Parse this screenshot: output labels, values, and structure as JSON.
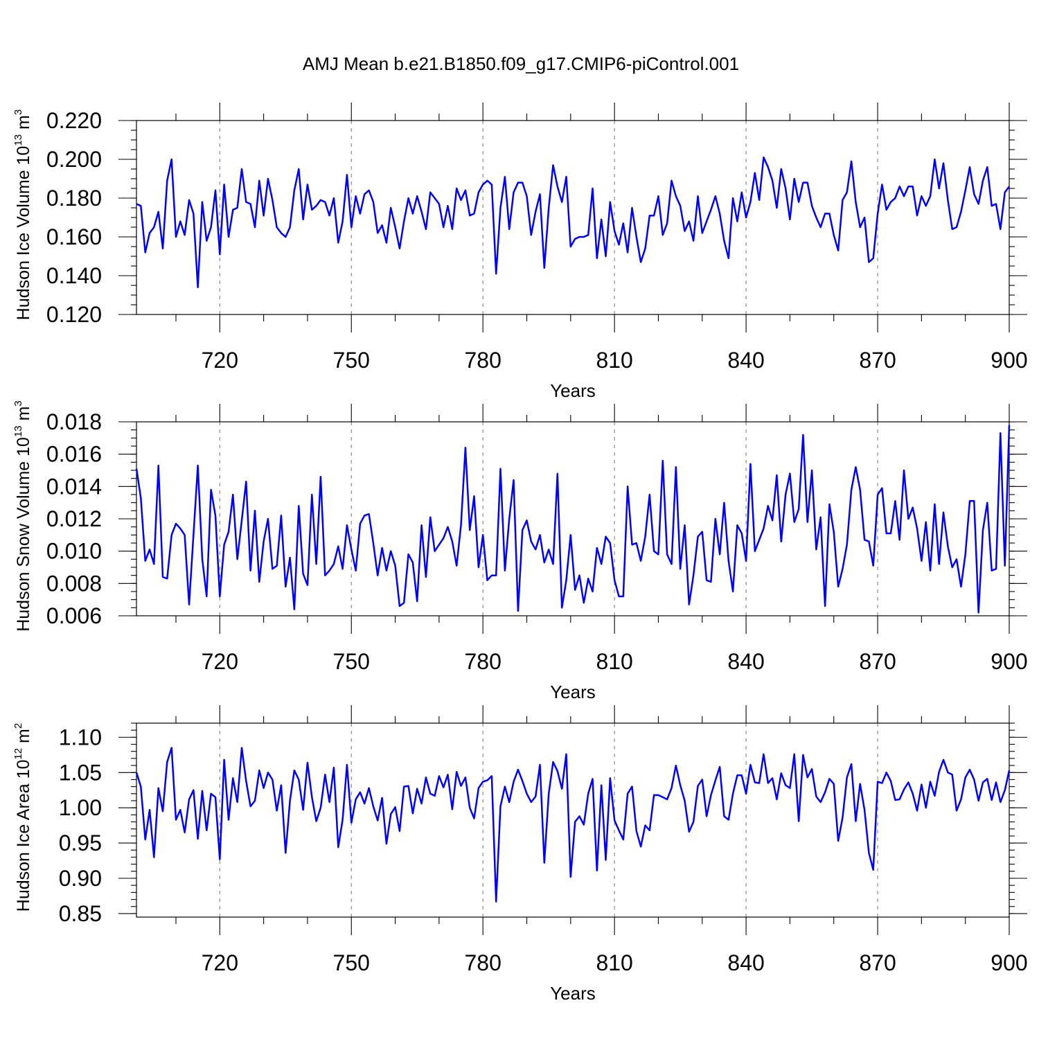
{
  "title": "AMJ Mean b.e21.B1850.f09_g17.CMIP6-piControl.001",
  "line_color": "#0000ff",
  "chart_data": [
    {
      "type": "line",
      "ylabel_main": "Hudson Ice Volume 10",
      "ylabel_exp": "13",
      "ylabel_unit": " m",
      "ylabel_unit_exp": "3",
      "xlabel": "Years",
      "xlim": [
        701,
        900
      ],
      "ylim": [
        0.12,
        0.22
      ],
      "x_start": 701,
      "x_major_ticks": [
        "720",
        "750",
        "780",
        "810",
        "840",
        "870",
        "900"
      ],
      "y_major_ticks": [
        "0.120",
        "0.140",
        "0.160",
        "0.180",
        "0.200",
        "0.220"
      ],
      "y_major_values": [
        0.12,
        0.14,
        0.16,
        0.18,
        0.2,
        0.22
      ],
      "y_minor_step": 0.005,
      "grid": "vertical dashed at major x ticks",
      "values": [
        0.177,
        0.176,
        0.152,
        0.162,
        0.165,
        0.173,
        0.154,
        0.189,
        0.2,
        0.16,
        0.168,
        0.161,
        0.179,
        0.172,
        0.134,
        0.178,
        0.158,
        0.165,
        0.184,
        0.151,
        0.187,
        0.16,
        0.174,
        0.175,
        0.195,
        0.178,
        0.177,
        0.165,
        0.189,
        0.171,
        0.19,
        0.179,
        0.165,
        0.162,
        0.16,
        0.165,
        0.184,
        0.195,
        0.169,
        0.187,
        0.174,
        0.176,
        0.179,
        0.178,
        0.171,
        0.18,
        0.157,
        0.168,
        0.192,
        0.165,
        0.181,
        0.172,
        0.182,
        0.184,
        0.178,
        0.162,
        0.166,
        0.157,
        0.175,
        0.165,
        0.154,
        0.168,
        0.18,
        0.172,
        0.181,
        0.173,
        0.164,
        0.183,
        0.18,
        0.177,
        0.165,
        0.176,
        0.164,
        0.185,
        0.179,
        0.184,
        0.171,
        0.172,
        0.183,
        0.187,
        0.189,
        0.187,
        0.141,
        0.175,
        0.191,
        0.164,
        0.183,
        0.188,
        0.188,
        0.181,
        0.161,
        0.173,
        0.182,
        0.144,
        0.175,
        0.197,
        0.186,
        0.178,
        0.191,
        0.155,
        0.159,
        0.16,
        0.16,
        0.161,
        0.185,
        0.149,
        0.169,
        0.15,
        0.178,
        0.163,
        0.156,
        0.167,
        0.152,
        0.175,
        0.16,
        0.147,
        0.154,
        0.171,
        0.171,
        0.181,
        0.161,
        0.167,
        0.189,
        0.181,
        0.176,
        0.163,
        0.168,
        0.158,
        0.181,
        0.162,
        0.168,
        0.174,
        0.181,
        0.172,
        0.158,
        0.149,
        0.18,
        0.168,
        0.183,
        0.17,
        0.178,
        0.193,
        0.179,
        0.201,
        0.196,
        0.189,
        0.175,
        0.195,
        0.185,
        0.169,
        0.19,
        0.178,
        0.188,
        0.188,
        0.176,
        0.17,
        0.165,
        0.172,
        0.172,
        0.161,
        0.153,
        0.179,
        0.183,
        0.199,
        0.178,
        0.165,
        0.17,
        0.147,
        0.149,
        0.172,
        0.187,
        0.174,
        0.178,
        0.18,
        0.186,
        0.181,
        0.186,
        0.186,
        0.171,
        0.181,
        0.176,
        0.181,
        0.2,
        0.185,
        0.198,
        0.179,
        0.164,
        0.165,
        0.173,
        0.184,
        0.196,
        0.182,
        0.177,
        0.189,
        0.196,
        0.176,
        0.177,
        0.164,
        0.183,
        0.186
      ]
    },
    {
      "type": "line",
      "ylabel_main": "Hudson Snow Volume 10",
      "ylabel_exp": "13",
      "ylabel_unit": " m",
      "ylabel_unit_exp": "3",
      "xlabel": "Years",
      "xlim": [
        701,
        900
      ],
      "ylim": [
        0.006,
        0.018
      ],
      "x_start": 701,
      "x_major_ticks": [
        "720",
        "750",
        "780",
        "810",
        "840",
        "870",
        "900"
      ],
      "y_major_ticks": [
        "0.006",
        "0.008",
        "0.010",
        "0.012",
        "0.014",
        "0.016",
        "0.018"
      ],
      "y_major_values": [
        0.006,
        0.008,
        0.01,
        0.012,
        0.014,
        0.016,
        0.018
      ],
      "y_minor_step": 0.0005,
      "grid": "vertical dashed at major x ticks",
      "values": [
        0.0151,
        0.0133,
        0.0094,
        0.0101,
        0.0092,
        0.0153,
        0.0084,
        0.0083,
        0.011,
        0.0117,
        0.0114,
        0.011,
        0.0067,
        0.011,
        0.0153,
        0.0095,
        0.0072,
        0.0138,
        0.0122,
        0.0072,
        0.0104,
        0.0112,
        0.0135,
        0.0095,
        0.0119,
        0.0143,
        0.0088,
        0.0125,
        0.0081,
        0.0106,
        0.012,
        0.0089,
        0.0091,
        0.0122,
        0.0078,
        0.0096,
        0.0064,
        0.0128,
        0.0086,
        0.0079,
        0.0135,
        0.0092,
        0.0146,
        0.0085,
        0.0088,
        0.0092,
        0.0103,
        0.0089,
        0.0116,
        0.0101,
        0.0088,
        0.0117,
        0.0122,
        0.0123,
        0.0105,
        0.0085,
        0.0102,
        0.0088,
        0.01,
        0.0091,
        0.0066,
        0.0068,
        0.0098,
        0.0093,
        0.0069,
        0.0116,
        0.0084,
        0.0121,
        0.01,
        0.0104,
        0.0108,
        0.0115,
        0.0106,
        0.0091,
        0.0116,
        0.0164,
        0.0113,
        0.0134,
        0.009,
        0.011,
        0.0082,
        0.0085,
        0.0085,
        0.0151,
        0.0088,
        0.012,
        0.0144,
        0.0063,
        0.0113,
        0.0119,
        0.0106,
        0.0101,
        0.011,
        0.0093,
        0.0101,
        0.0092,
        0.0148,
        0.0065,
        0.0082,
        0.011,
        0.0076,
        0.0085,
        0.0068,
        0.0083,
        0.0075,
        0.0102,
        0.0092,
        0.0109,
        0.0105,
        0.0082,
        0.0072,
        0.0072,
        0.014,
        0.0104,
        0.0105,
        0.0094,
        0.0109,
        0.0135,
        0.01,
        0.0098,
        0.0156,
        0.0098,
        0.0092,
        0.0152,
        0.0089,
        0.0116,
        0.0067,
        0.0085,
        0.0109,
        0.0112,
        0.0082,
        0.0081,
        0.012,
        0.0098,
        0.013,
        0.0094,
        0.0075,
        0.0116,
        0.0111,
        0.0094,
        0.0154,
        0.01,
        0.0107,
        0.0114,
        0.0128,
        0.0119,
        0.0147,
        0.0106,
        0.0135,
        0.0148,
        0.0118,
        0.0126,
        0.0172,
        0.0118,
        0.015,
        0.0101,
        0.0121,
        0.0066,
        0.0129,
        0.0112,
        0.0078,
        0.0089,
        0.0104,
        0.0138,
        0.0152,
        0.0138,
        0.0107,
        0.0106,
        0.0091,
        0.0135,
        0.0139,
        0.0111,
        0.0111,
        0.0131,
        0.0107,
        0.015,
        0.012,
        0.0127,
        0.0114,
        0.0094,
        0.0118,
        0.0088,
        0.0129,
        0.0092,
        0.0124,
        0.0103,
        0.009,
        0.0095,
        0.0078,
        0.0098,
        0.0131,
        0.0131,
        0.0062,
        0.0113,
        0.013,
        0.0088,
        0.0089,
        0.0173,
        0.0091,
        0.0178
      ]
    },
    {
      "type": "line",
      "ylabel_main": "Hudson Ice Area 10",
      "ylabel_exp": "12",
      "ylabel_unit": " m",
      "ylabel_unit_exp": "2",
      "xlabel": "Years",
      "xlim": [
        701,
        900
      ],
      "ylim": [
        0.845,
        1.12
      ],
      "x_start": 701,
      "x_major_ticks": [
        "720",
        "750",
        "780",
        "810",
        "840",
        "870",
        "900"
      ],
      "y_major_ticks": [
        "0.85",
        "0.90",
        "0.95",
        "1.00",
        "1.05",
        "1.10"
      ],
      "y_major_values": [
        0.85,
        0.9,
        0.95,
        1.0,
        1.05,
        1.1
      ],
      "y_minor_step": 0.01,
      "grid": "vertical dashed at major x ticks",
      "values": [
        1.05,
        1.03,
        0.955,
        0.997,
        0.93,
        1.028,
        0.995,
        1.065,
        1.085,
        0.983,
        0.997,
        0.965,
        1.012,
        1.025,
        0.956,
        1.024,
        0.968,
        1.02,
        1.015,
        0.927,
        1.068,
        0.983,
        1.042,
        1.008,
        1.085,
        1.038,
        1.002,
        1.01,
        1.053,
        1.028,
        1.05,
        1.04,
        0.996,
        1.032,
        0.936,
        1.01,
        1.053,
        1.04,
        0.997,
        1.064,
        1.015,
        0.981,
        1.0,
        1.047,
        1.008,
        1.057,
        0.944,
        0.983,
        1.061,
        0.979,
        1.012,
        1.022,
        1.006,
        1.028,
        1.002,
        0.982,
        1.014,
        0.949,
        0.991,
        1.001,
        0.967,
        1.03,
        1.031,
        0.992,
        1.027,
        1.006,
        1.043,
        1.02,
        1.017,
        1.045,
        1.029,
        1.047,
        0.998,
        1.051,
        1.031,
        1.043,
        1.0,
        0.985,
        1.028,
        1.037,
        1.039,
        1.045,
        0.867,
        1.002,
        1.03,
        1.008,
        1.037,
        1.054,
        1.038,
        1.02,
        1.008,
        1.016,
        1.061,
        0.922,
        1.02,
        1.065,
        1.052,
        1.027,
        1.076,
        0.902,
        0.98,
        0.988,
        0.976,
        1.02,
        1.041,
        0.911,
        1.032,
        0.926,
        1.042,
        0.982,
        0.968,
        0.955,
        1.02,
        1.03,
        0.967,
        0.945,
        0.975,
        0.968,
        1.018,
        1.018,
        1.015,
        1.012,
        1.028,
        1.06,
        1.032,
        1.01,
        0.966,
        0.98,
        1.031,
        1.04,
        0.988,
        1.018,
        1.039,
        1.058,
        0.988,
        0.983,
        1.02,
        1.046,
        1.046,
        1.02,
        1.061,
        1.036,
        1.035,
        1.076,
        1.035,
        1.042,
        1.012,
        1.049,
        1.032,
        1.028,
        1.076,
        0.981,
        1.075,
        1.043,
        1.055,
        1.016,
        1.008,
        1.022,
        1.041,
        1.034,
        0.953,
        0.986,
        1.043,
        1.062,
        0.981,
        1.034,
        0.997,
        0.936,
        0.912,
        1.037,
        1.035,
        1.05,
        1.038,
        1.011,
        1.012,
        1.026,
        1.036,
        1.02,
        0.996,
        1.033,
        1.0,
        1.037,
        1.017,
        1.051,
        1.068,
        1.05,
        1.047,
        0.996,
        1.012,
        1.043,
        1.054,
        1.04,
        1.01,
        1.036,
        1.041,
        1.011,
        1.036,
        1.008,
        1.025,
        1.053
      ]
    }
  ]
}
